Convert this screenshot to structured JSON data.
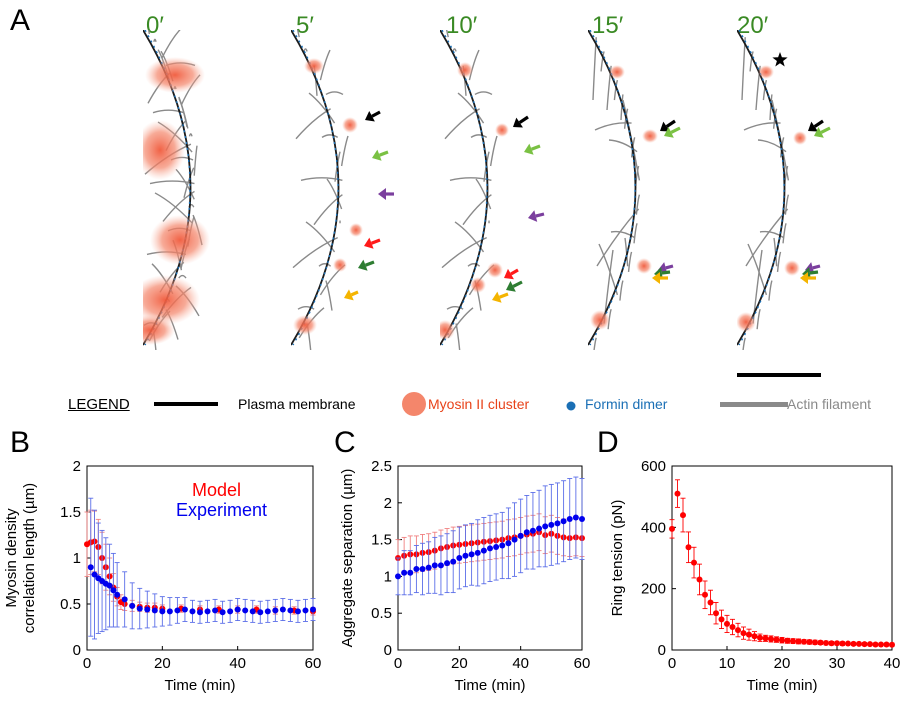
{
  "panels": {
    "a": {
      "letter": "A",
      "times": [
        "0′",
        "5′",
        "10′",
        "15′",
        "20′"
      ]
    },
    "b": {
      "letter": "B"
    },
    "c": {
      "letter": "C"
    },
    "d": {
      "letter": "D"
    }
  },
  "legend": {
    "title": "LEGEND",
    "membrane": "Plasma membrane",
    "myosin": "Myosin II cluster",
    "formin": "Formin dimer",
    "actin": "Actin filament"
  },
  "colors": {
    "green_label": "#3a8a24",
    "model": "#ff0000",
    "experiment": "#0000ee",
    "myosin": "#f4866b",
    "formin": "#1a6fb5",
    "actin": "#8a8a8a",
    "arrow_black": "#000000",
    "arrow_lime": "#7ac143",
    "arrow_purple": "#7b3f9e",
    "arrow_red": "#ff1a1a",
    "arrow_darkgreen": "#2e7d32",
    "arrow_yellow": "#f4b400"
  },
  "chart_data": [
    {
      "id": "B",
      "type": "scatter",
      "xlabel": "Time (min)",
      "ylabel": "Myosin density correlation length (µm)",
      "ylabel_lines": [
        "Myosin density",
        "correlation length (µm)"
      ],
      "xlim": [
        0,
        60
      ],
      "ylim": [
        0,
        2
      ],
      "xticks": [
        0,
        20,
        40,
        60
      ],
      "yticks": [
        0,
        0.5,
        1,
        1.5,
        2
      ],
      "legend_position": "top-right",
      "series": [
        {
          "name": "Model",
          "color": "#ff0000",
          "x": [
            0,
            1,
            2,
            3,
            4,
            5,
            6,
            7,
            8,
            9,
            10,
            12,
            14,
            16,
            18,
            20,
            25,
            30,
            35,
            40,
            45,
            50,
            55,
            60
          ],
          "y": [
            1.15,
            1.17,
            1.18,
            1.12,
            1.0,
            0.9,
            0.8,
            0.68,
            0.58,
            0.52,
            0.5,
            0.48,
            0.47,
            0.46,
            0.46,
            0.45,
            0.45,
            0.44,
            0.44,
            0.44,
            0.44,
            0.43,
            0.43,
            0.42
          ],
          "err": [
            0.35,
            0.35,
            0.33,
            0.3,
            0.28,
            0.25,
            0.2,
            0.15,
            0.1,
            0.08,
            0.07,
            0.06,
            0.05,
            0.05,
            0.05,
            0.04,
            0.04,
            0.04,
            0.04,
            0.04,
            0.04,
            0.04,
            0.04,
            0.04
          ]
        },
        {
          "name": "Experiment",
          "color": "#0000ee",
          "x": [
            1,
            2,
            3,
            4,
            5,
            6,
            7,
            8,
            10,
            12,
            14,
            16,
            18,
            20,
            22,
            24,
            26,
            28,
            30,
            32,
            34,
            36,
            38,
            40,
            42,
            44,
            46,
            48,
            50,
            52,
            54,
            56,
            58,
            60
          ],
          "y": [
            0.9,
            0.82,
            0.78,
            0.75,
            0.72,
            0.7,
            0.65,
            0.6,
            0.55,
            0.48,
            0.45,
            0.44,
            0.43,
            0.42,
            0.42,
            0.43,
            0.44,
            0.42,
            0.41,
            0.42,
            0.43,
            0.41,
            0.42,
            0.44,
            0.43,
            0.42,
            0.41,
            0.42,
            0.43,
            0.44,
            0.43,
            0.42,
            0.43,
            0.44
          ],
          "err": [
            0.75,
            0.7,
            0.6,
            0.55,
            0.5,
            0.45,
            0.4,
            0.35,
            0.3,
            0.25,
            0.22,
            0.2,
            0.18,
            0.16,
            0.15,
            0.14,
            0.13,
            0.12,
            0.12,
            0.12,
            0.12,
            0.12,
            0.12,
            0.12,
            0.12,
            0.12,
            0.12,
            0.12,
            0.12,
            0.12,
            0.12,
            0.12,
            0.12,
            0.12
          ]
        }
      ]
    },
    {
      "id": "C",
      "type": "scatter",
      "xlabel": "Time (min)",
      "ylabel": "Aggregate separation (µm)",
      "xlim": [
        0,
        60
      ],
      "ylim": [
        0,
        2.5
      ],
      "xticks": [
        0,
        20,
        40,
        60
      ],
      "yticks": [
        0,
        0.5,
        1,
        1.5,
        2,
        2.5
      ],
      "series": [
        {
          "name": "",
          "color": "#ff0000",
          "x": [
            0,
            2,
            4,
            6,
            8,
            10,
            12,
            14,
            16,
            18,
            20,
            22,
            24,
            26,
            28,
            30,
            32,
            34,
            36,
            38,
            40,
            42,
            44,
            46,
            48,
            50,
            52,
            54,
            56,
            58,
            60
          ],
          "y": [
            1.25,
            1.28,
            1.3,
            1.3,
            1.32,
            1.33,
            1.35,
            1.38,
            1.4,
            1.42,
            1.43,
            1.44,
            1.45,
            1.46,
            1.47,
            1.48,
            1.49,
            1.5,
            1.52,
            1.53,
            1.55,
            1.57,
            1.58,
            1.6,
            1.56,
            1.58,
            1.55,
            1.53,
            1.52,
            1.53,
            1.52
          ],
          "err": [
            0.25,
            0.25,
            0.25,
            0.25,
            0.25,
            0.25,
            0.25,
            0.25,
            0.25,
            0.25,
            0.25,
            0.25,
            0.25,
            0.25,
            0.25,
            0.25,
            0.25,
            0.25,
            0.25,
            0.25,
            0.25,
            0.25,
            0.25,
            0.25,
            0.25,
            0.25,
            0.25,
            0.25,
            0.25,
            0.25,
            0.25
          ]
        },
        {
          "name": "",
          "color": "#0000ee",
          "x": [
            0,
            2,
            4,
            6,
            8,
            10,
            12,
            14,
            16,
            18,
            20,
            22,
            24,
            26,
            28,
            30,
            32,
            34,
            36,
            38,
            40,
            42,
            44,
            46,
            48,
            50,
            52,
            54,
            56,
            58,
            60
          ],
          "y": [
            1.0,
            1.05,
            1.05,
            1.1,
            1.1,
            1.12,
            1.15,
            1.15,
            1.18,
            1.2,
            1.25,
            1.28,
            1.3,
            1.32,
            1.35,
            1.38,
            1.4,
            1.42,
            1.45,
            1.5,
            1.55,
            1.6,
            1.62,
            1.65,
            1.68,
            1.7,
            1.72,
            1.75,
            1.78,
            1.8,
            1.78
          ],
          "err": [
            0.25,
            0.3,
            0.3,
            0.32,
            0.35,
            0.35,
            0.38,
            0.4,
            0.4,
            0.42,
            0.42,
            0.42,
            0.42,
            0.45,
            0.45,
            0.45,
            0.45,
            0.45,
            0.48,
            0.5,
            0.5,
            0.5,
            0.52,
            0.52,
            0.55,
            0.55,
            0.55,
            0.55,
            0.55,
            0.55,
            0.55
          ]
        }
      ]
    },
    {
      "id": "D",
      "type": "scatter",
      "xlabel": "Time (min)",
      "ylabel": "Ring tension (pN)",
      "xlim": [
        0,
        40
      ],
      "ylim": [
        0,
        600
      ],
      "xticks": [
        0,
        10,
        20,
        30,
        40
      ],
      "yticks": [
        0,
        200,
        400,
        600
      ],
      "series": [
        {
          "name": "",
          "color": "#ff0000",
          "x": [
            0,
            1,
            2,
            3,
            4,
            5,
            6,
            7,
            8,
            9,
            10,
            11,
            12,
            13,
            14,
            15,
            16,
            17,
            18,
            19,
            20,
            21,
            22,
            23,
            24,
            25,
            26,
            27,
            28,
            29,
            30,
            31,
            32,
            33,
            34,
            35,
            36,
            37,
            38,
            39,
            40
          ],
          "y": [
            395,
            510,
            440,
            335,
            285,
            230,
            180,
            155,
            120,
            100,
            85,
            75,
            65,
            55,
            50,
            45,
            40,
            38,
            36,
            34,
            32,
            30,
            29,
            28,
            27,
            26,
            25,
            24,
            23,
            22,
            22,
            21,
            21,
            20,
            20,
            19,
            19,
            18,
            18,
            18,
            17
          ],
          "err": [
            30,
            45,
            55,
            50,
            50,
            50,
            45,
            40,
            35,
            30,
            28,
            25,
            22,
            20,
            18,
            15,
            12,
            10,
            10,
            9,
            9,
            8,
            8,
            8,
            7,
            7,
            7,
            6,
            6,
            6,
            6,
            6,
            5,
            5,
            5,
            5,
            5,
            5,
            5,
            5,
            5
          ]
        }
      ]
    }
  ]
}
